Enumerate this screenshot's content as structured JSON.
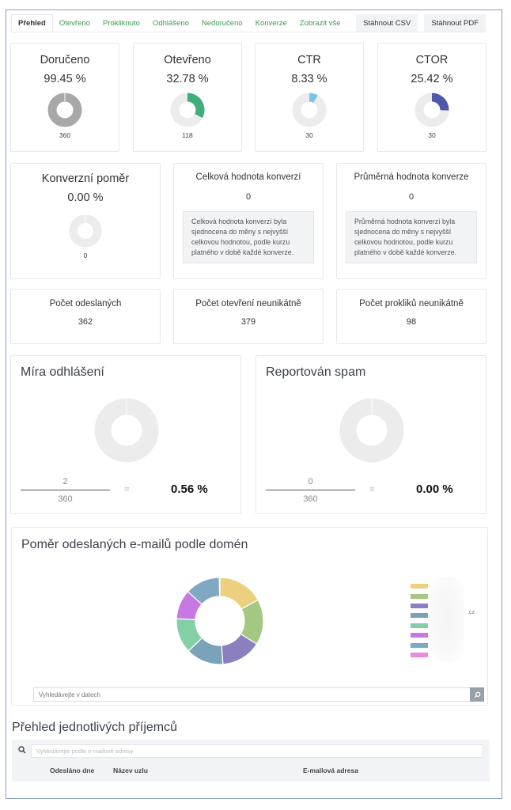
{
  "tabs": [
    {
      "label": "Přehled",
      "active": true
    },
    {
      "label": "Otevřeno"
    },
    {
      "label": "Prokliknuto"
    },
    {
      "label": "Odhlášeno"
    },
    {
      "label": "Nedoručeno"
    },
    {
      "label": "Konverze"
    },
    {
      "label": "Zobrazit vše"
    }
  ],
  "actions": {
    "csv": "Stáhnout CSV",
    "pdf": "Stáhnout PDF"
  },
  "colors": {
    "tab_link": "#3c9a4e",
    "donut_track": "#ececec",
    "delivered": "#a8a8a8",
    "opened": "#3fae7c",
    "ctr": "#7cc4e6",
    "ctor": "#4e57a8"
  },
  "stats": [
    {
      "title": "Doručeno",
      "pct": "99.45 %",
      "count": "360",
      "value": 99.45,
      "color": "#a8a8a8"
    },
    {
      "title": "Otevřeno",
      "pct": "32.78 %",
      "count": "118",
      "value": 32.78,
      "color": "#3fae7c"
    },
    {
      "title": "CTR",
      "pct": "8.33 %",
      "count": "30",
      "value": 8.33,
      "color": "#7cc4e6"
    },
    {
      "title": "CTOR",
      "pct": "25.42 %",
      "count": "30",
      "value": 25.42,
      "color": "#4e57a8"
    }
  ],
  "conversion": {
    "title": "Konverzní poměr",
    "pct": "0.00 %",
    "count": "0"
  },
  "total_value": {
    "title": "Celková hodnota konverzí",
    "value": "0",
    "note": "Celková hodnota konverzí byla sjednocena do měny s nejvyšší celkovou hodnotou, podle kurzu platného v době každé konverze."
  },
  "avg_value": {
    "title": "Průměrná hodnota konverze",
    "value": "0",
    "note": "Průměrná hodnota konverzí byla sjednocena do měny s nejvyšší celkovou hodnotou, podle kurzu platného v době každé konverze."
  },
  "counts": [
    {
      "title": "Počet odeslaných",
      "value": "362"
    },
    {
      "title": "Počet otevření neunikátně",
      "value": "379"
    },
    {
      "title": "Počet prokliků neunikátně",
      "value": "98"
    }
  ],
  "unsubscribe": {
    "title": "Míra odhlášení",
    "numerator": "2",
    "denominator": "360",
    "eq": "=",
    "result": "0.56 %"
  },
  "spam": {
    "title": "Reportován spam",
    "numerator": "0",
    "denominator": "360",
    "eq": "=",
    "result": "0.00 %"
  },
  "domains": {
    "title": "Poměr odeslaných e-mailů podle domén",
    "legend_visible_fragment": ".cz",
    "search_placeholder": "Vyhledávejte v datech"
  },
  "chart_data": {
    "type": "pie",
    "title": "Poměr odeslaných e-mailů podle domén",
    "categories": [
      "domain-1",
      "domain-2",
      "domain-3",
      "domain-4",
      "domain-5",
      "domain-6",
      "domain-7",
      "domain-8"
    ],
    "values": [
      17,
      17,
      15,
      14,
      13,
      11,
      13,
      0.2
    ],
    "colors": [
      "#ecd07e",
      "#a3c882",
      "#8c7fbf",
      "#7aa2b8",
      "#84cfa6",
      "#c779e3",
      "#7fa9c2",
      "#e98ae0"
    ],
    "legend_position": "right",
    "note": "Legend labels are blurred/redacted in the screenshot; slice sizes estimated from arc angles."
  },
  "recipients": {
    "title": "Přehled jednotlivých příjemců",
    "search_placeholder": "Vyhledávejte podle e-mailové adresy",
    "columns": [
      "Odesláno dne",
      "Název uzlu",
      "E-mailová adresa"
    ]
  }
}
